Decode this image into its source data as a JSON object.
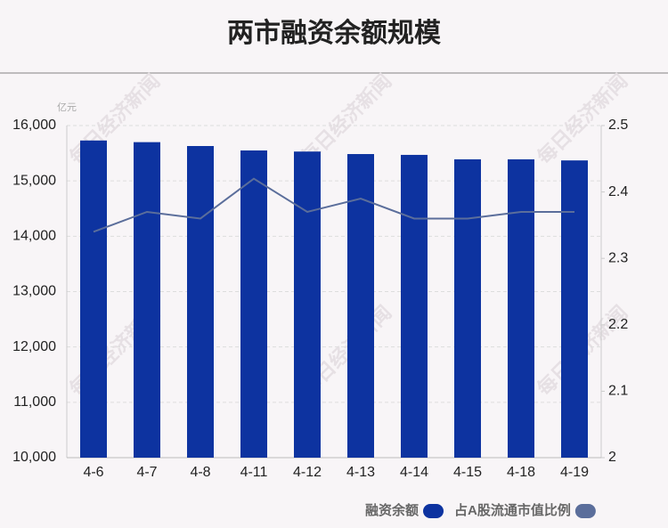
{
  "chart_data": {
    "type": "bar",
    "title": "两市融资余额规模",
    "y_unit": "亿元",
    "watermark": "每日经济新闻",
    "categories": [
      "4-6",
      "4-7",
      "4-8",
      "4-11",
      "4-12",
      "4-13",
      "4-14",
      "4-15",
      "4-18",
      "4-19"
    ],
    "series": [
      {
        "name": "融资余额",
        "type": "bar",
        "color": "#0d33a0",
        "values": [
          15730,
          15700,
          15630,
          15550,
          15530,
          15485,
          15470,
          15390,
          15390,
          15370
        ]
      },
      {
        "name": "占A股流通市值比例",
        "type": "line",
        "axis": "y2",
        "color": "#5b6e9b",
        "values": [
          2.34,
          2.37,
          2.36,
          2.42,
          2.37,
          2.39,
          2.36,
          2.36,
          2.37,
          2.37
        ]
      }
    ],
    "ylim": [
      10000,
      16000
    ],
    "yticks": [
      {
        "value": 10000,
        "label": "10,000"
      },
      {
        "value": 11000,
        "label": "11,000"
      },
      {
        "value": 12000,
        "label": "12,000"
      },
      {
        "value": 13000,
        "label": "13,000"
      },
      {
        "value": 14000,
        "label": "14,000"
      },
      {
        "value": 15000,
        "label": "15,000"
      },
      {
        "value": 16000,
        "label": "16,000"
      }
    ],
    "y2lim": [
      2,
      2.5
    ],
    "y2ticks": [
      2,
      2.1,
      2.2,
      2.3,
      2.4,
      2.5
    ],
    "grid": true
  }
}
